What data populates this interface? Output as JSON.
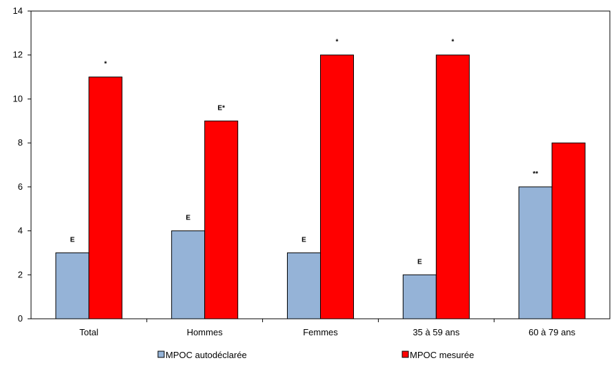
{
  "chart_data": {
    "type": "bar",
    "categories": [
      "Total",
      "Hommes",
      "Femmes",
      "35 à 59 ans",
      "60 à 79 ans"
    ],
    "series": [
      {
        "name": "MPOC autodéclarée",
        "color": "#95B3D7",
        "values": [
          3,
          4,
          3,
          2,
          6
        ],
        "labels": [
          "E",
          "E",
          "E",
          "E",
          "**"
        ]
      },
      {
        "name": "MPOC mesurée",
        "color": "#FF0000",
        "values": [
          11,
          9,
          12,
          12,
          8
        ],
        "labels": [
          "*",
          "E*",
          "*",
          "*",
          ""
        ]
      }
    ],
    "ylim": [
      0,
      14
    ],
    "yticks": [
      "0",
      "2",
      "4",
      "6",
      "8",
      "10",
      "12",
      "14"
    ],
    "grid": false,
    "legend_position": "bottom"
  }
}
